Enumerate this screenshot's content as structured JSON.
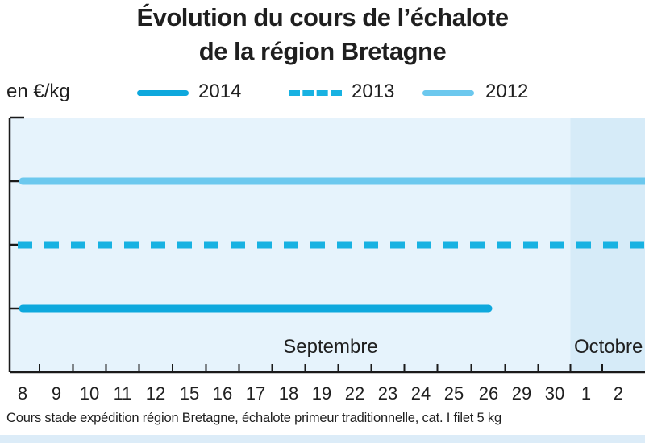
{
  "header": {
    "title_line1": "Évolution du cours de l’échalote",
    "title_line2": "de la région Bretagne",
    "unit": "en €/kg"
  },
  "footnote": "Cours stade expédition région Bretagne, échalote primeur traditionnelle, cat. I filet 5 kg",
  "colors": {
    "background_plot": "#e6f3fc",
    "background_october": "#d6ebf8",
    "axis": "#1a1a1a",
    "series_2014": "#0ea8dd",
    "series_2013": "#18b2e2",
    "series_2012": "#6cc8ee"
  },
  "chart_data": {
    "type": "line",
    "title": "Évolution du cours de l’échalote de la région Bretagne",
    "ylabel": "en €/kg",
    "y_tick_labels_shown": false,
    "categories": [
      "8",
      "9",
      "10",
      "11",
      "12",
      "15",
      "16",
      "17",
      "18",
      "19",
      "22",
      "23",
      "24",
      "25",
      "26",
      "29",
      "30",
      "1",
      "2"
    ],
    "months": [
      {
        "label": "Septembre",
        "from_index": 0,
        "to_index": 16
      },
      {
        "label": "Octobre",
        "from_index": 17,
        "to_index": 18
      }
    ],
    "ylim": [
      0,
      4
    ],
    "grid": false,
    "legend_position": "top",
    "series": [
      {
        "name": "2014",
        "style": "solid",
        "color": "#0ea8dd",
        "values": [
          1,
          1,
          1,
          1,
          1,
          1,
          1,
          1,
          1,
          1,
          1,
          1,
          1,
          1,
          1,
          null,
          null,
          null,
          null
        ]
      },
      {
        "name": "2013",
        "style": "dashed",
        "color": "#18b2e2",
        "values": [
          2,
          2,
          2,
          2,
          2,
          2,
          2,
          2,
          2,
          2,
          2,
          2,
          2,
          2,
          2,
          2,
          2,
          2,
          2
        ]
      },
      {
        "name": "2012",
        "style": "solid",
        "color": "#6cc8ee",
        "values": [
          3,
          3,
          3,
          3,
          3,
          3,
          3,
          3,
          3,
          3,
          3,
          3,
          3,
          3,
          3,
          3,
          3,
          3,
          3
        ]
      }
    ]
  }
}
